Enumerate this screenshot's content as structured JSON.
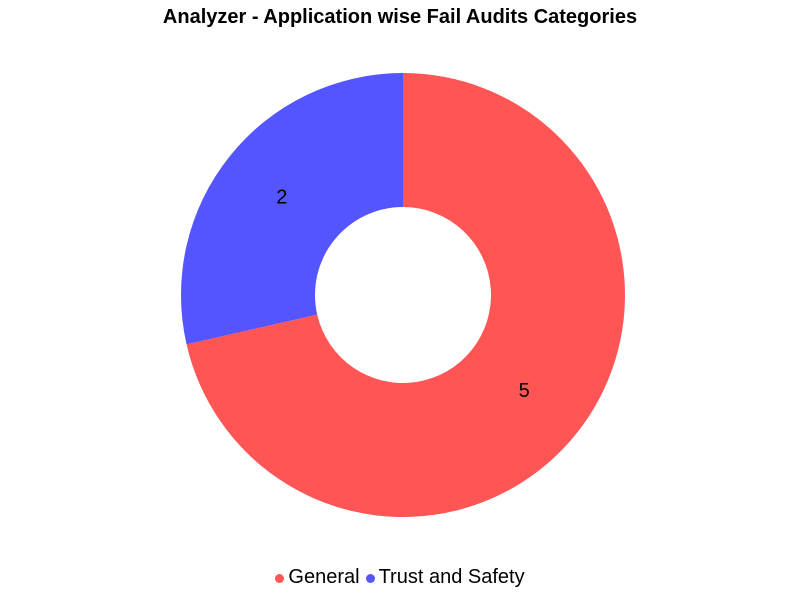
{
  "chart_data": {
    "type": "pie",
    "donut": true,
    "title": "Analyzer - Application wise Fail Audits Categories",
    "series": [
      {
        "name": "General",
        "value": 5,
        "label": "5",
        "color": "#ff5555"
      },
      {
        "name": "Trust and Safety",
        "value": 2,
        "label": "2",
        "color": "#5555ff"
      }
    ],
    "legend_position": "bottom-center"
  }
}
